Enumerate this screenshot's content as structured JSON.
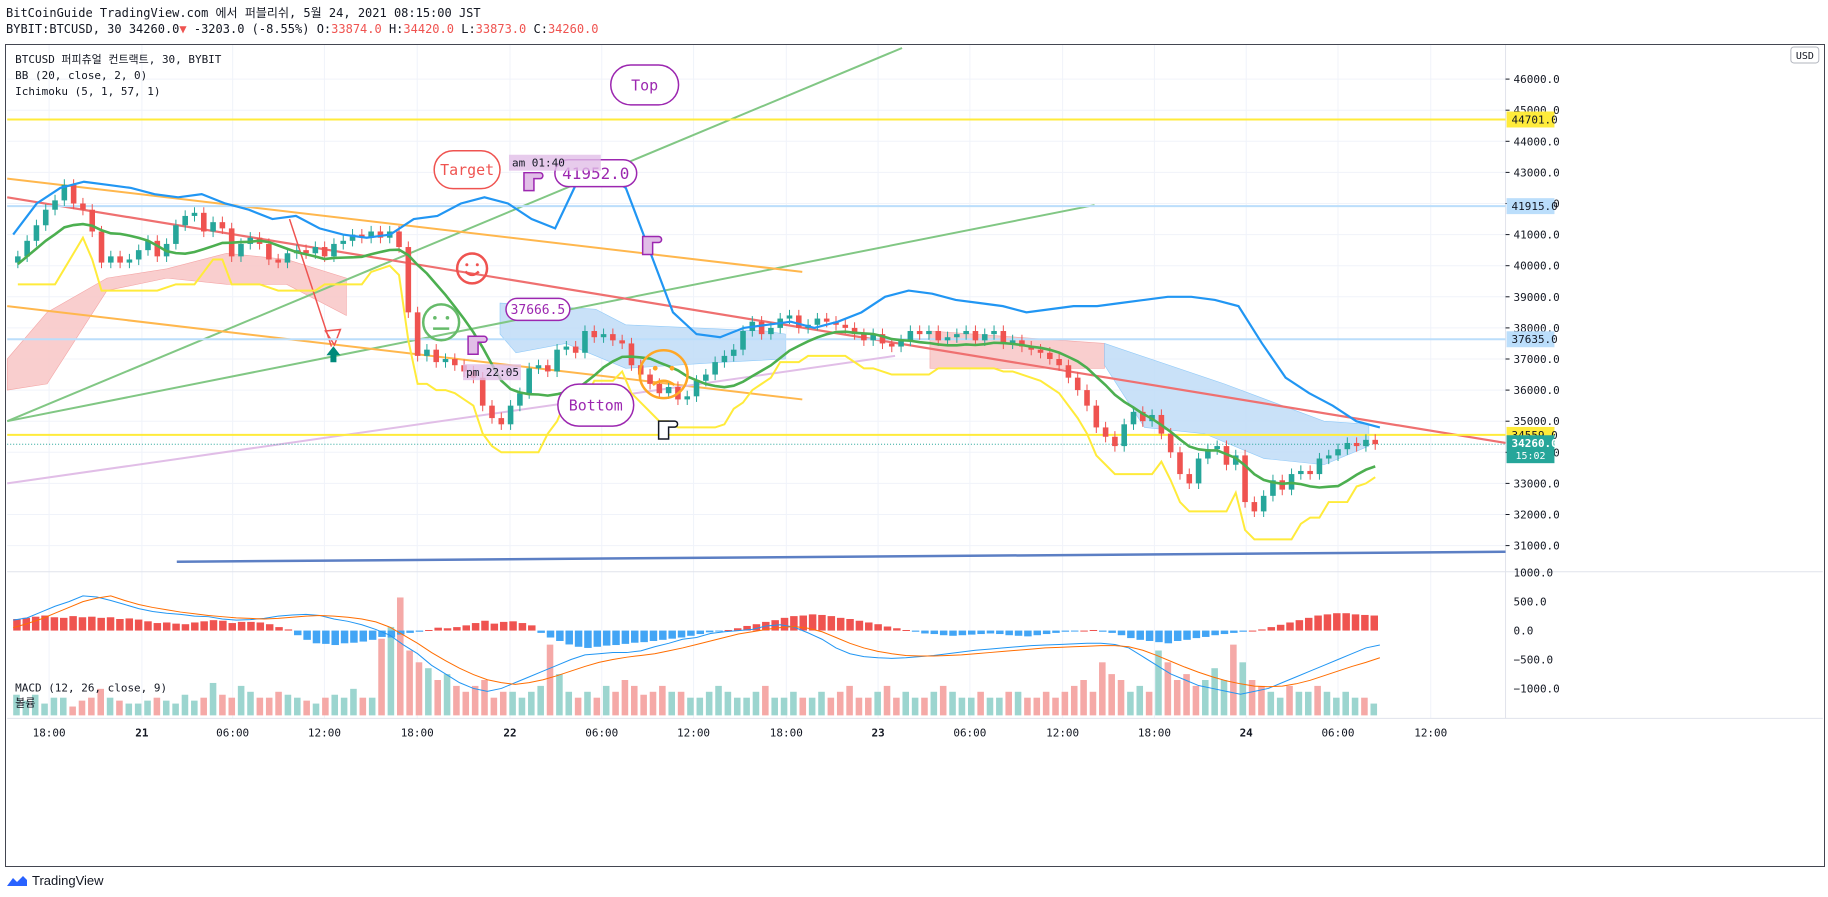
{
  "header": {
    "publisher": "BitCoinGuide TradingView.com 에서 퍼블리쉬, 5월 24, 2021 08:15:00 JST",
    "symbol_line": "BYBIT:BTCUSD, 30 34260.0",
    "change_arrow": "▼",
    "change": "-3203.0 (-8.55%)",
    "o_label": "O:",
    "o_value": "33874.0",
    "h_label": "H:",
    "h_value": "34420.0",
    "l_label": "L:",
    "l_value": "33873.0",
    "c_label": "C:",
    "c_value": "34260.0"
  },
  "legend": {
    "title": "BTCUSD 퍼피츄얼 컨트랙트, 30, BYBIT",
    "bb": "BB (20, close, 2, 0)",
    "ichimoku": "Ichimoku (5, 1, 57, 1)",
    "macd": "MACD (12, 26, close, 9)",
    "volume": "볼륨"
  },
  "currency": "USD",
  "price_tags": {
    "line1": "44701.0",
    "line2": "41915.0",
    "line3": "37635.0",
    "line4": "34559.0",
    "last": "34260.0",
    "countdown": "15:02"
  },
  "annotations": {
    "target": "Target",
    "top": "Top",
    "bottom": "Bottom",
    "time_am": "am 01:40",
    "time_pm": "pm 22:05",
    "price_high": "41952.0",
    "price_low": "37666.5"
  },
  "footer": {
    "brand": "TradingView"
  },
  "colors": {
    "up": "#26a69a",
    "down": "#ef5350",
    "bb_upper": "#2196f3",
    "bb_basis": "#4caf50",
    "tenkan": "#ffeb3b",
    "kumo_bear": "#f8c6c6",
    "kumo_bull": "#bfdcf7",
    "macd_line": "#2196f3",
    "signal_line": "#ff6d00",
    "hline_yellow": "#ffeb3b",
    "hline_blue": "#bbdefb",
    "brand_purple": "#9c27b0"
  },
  "chart_data": {
    "type": "candlestick",
    "symbol": "BYBIT:BTCUSD",
    "interval": "30",
    "price_axis": {
      "ylim": [
        30000,
        47000
      ],
      "ticks": [
        "31000.0",
        "32000.0",
        "33000.0",
        "34000.0",
        "35000.0",
        "36000.0",
        "37000.0",
        "38000.0",
        "39000.0",
        "40000.0",
        "41000.0",
        "42000.0",
        "43000.0",
        "44000.0",
        "45000.0",
        "46000.0"
      ],
      "tick_values": [
        31000,
        32000,
        33000,
        34000,
        35000,
        36000,
        37000,
        38000,
        39000,
        40000,
        41000,
        42000,
        43000,
        44000,
        45000,
        46000
      ]
    },
    "indicator_axis": {
      "ticks": [
        "1000.0",
        "500.0",
        "0.0",
        "−500.0",
        "−1000.0"
      ],
      "tick_values": [
        1000,
        500,
        0,
        -500,
        -1000
      ]
    },
    "time_axis": {
      "ticks": [
        "18:00",
        "21",
        "06:00",
        "12:00",
        "18:00",
        "22",
        "06:00",
        "12:00",
        "18:00",
        "23",
        "06:00",
        "12:00",
        "18:00",
        "24",
        "06:00",
        "12:00"
      ],
      "bold_ticks": [
        "21",
        "22",
        "23",
        "24"
      ]
    },
    "last": {
      "open": 33874.0,
      "high": 34420.0,
      "low": 33873.0,
      "close": 34260.0,
      "change": -3203.0,
      "change_pct": -8.55
    },
    "horizontal_levels": [
      44701.0,
      41915.0,
      37635.0,
      34559.0
    ],
    "close_series": [
      40300,
      40800,
      41300,
      41800,
      42100,
      42600,
      42000,
      41800,
      41100,
      40100,
      40300,
      40100,
      40200,
      40500,
      40800,
      40300,
      40700,
      41300,
      41600,
      41700,
      41100,
      41400,
      41200,
      40300,
      40700,
      40900,
      40700,
      40200,
      40100,
      40400,
      40500,
      40400,
      40600,
      40300,
      40700,
      40800,
      41000,
      40900,
      41100,
      40900,
      41100,
      40600,
      38500,
      37100,
      37300,
      36900,
      37000,
      36800,
      36600,
      36400,
      35500,
      35100,
      34900,
      35500,
      35900,
      36700,
      36800,
      36600,
      37300,
      37400,
      37200,
      37900,
      37700,
      37800,
      37600,
      37500,
      36800,
      36500,
      36200,
      35900,
      36100,
      35700,
      35800,
      36300,
      36500,
      36900,
      37100,
      37300,
      37900,
      38200,
      37800,
      38000,
      38300,
      38400,
      38000,
      38100,
      38300,
      38200,
      38100,
      38000,
      37800,
      37600,
      37800,
      37500,
      37400,
      37600,
      37900,
      37800,
      37900,
      37600,
      37700,
      37800,
      37900,
      37600,
      37800,
      37900,
      37500,
      37600,
      37400,
      37300,
      37200,
      37000,
      36800,
      36400,
      36000,
      35500,
      34800,
      34500,
      34200,
      34900,
      35300,
      35000,
      35200,
      34600,
      34000,
      33300,
      33000,
      33800,
      34100,
      34200,
      33600,
      33900,
      32400,
      32100,
      32600,
      33100,
      32800,
      33300,
      33400,
      33300,
      33800,
      33900,
      34100,
      34300,
      34200,
      34400,
      34260
    ],
    "volume_series": [
      35,
      25,
      35,
      20,
      30,
      30,
      15,
      25,
      30,
      45,
      30,
      25,
      20,
      20,
      25,
      30,
      25,
      20,
      35,
      25,
      30,
      55,
      35,
      30,
      50,
      40,
      30,
      30,
      40,
      35,
      30,
      25,
      20,
      30,
      35,
      30,
      45,
      30,
      30,
      130,
      150,
      200,
      110,
      90,
      80,
      60,
      70,
      50,
      40,
      50,
      60,
      30,
      40,
      40,
      30,
      40,
      50,
      120,
      70,
      40,
      30,
      40,
      30,
      50,
      40,
      60,
      50,
      35,
      40,
      50,
      40,
      40,
      30,
      30,
      40,
      50,
      40,
      30,
      30,
      40,
      50,
      30,
      30,
      40,
      30,
      30,
      40,
      30,
      40,
      50,
      30,
      30,
      40,
      50,
      30,
      40,
      30,
      30,
      40,
      50,
      40,
      30,
      30,
      40,
      30,
      30,
      40,
      40,
      30,
      30,
      40,
      30,
      40,
      50,
      60,
      40,
      90,
      70,
      60,
      40,
      50,
      40,
      110,
      90,
      60,
      70,
      50,
      60,
      80,
      60,
      120,
      90,
      60,
      50,
      40,
      30,
      50,
      40,
      40,
      50,
      40,
      30,
      40,
      30,
      30,
      20
    ],
    "macd_hist_series": [
      200,
      220,
      240,
      260,
      230,
      220,
      250,
      230,
      240,
      220,
      230,
      200,
      210,
      190,
      160,
      130,
      140,
      120,
      110,
      140,
      160,
      180,
      170,
      130,
      150,
      150,
      140,
      110,
      60,
      20,
      -80,
      -160,
      -220,
      -230,
      -250,
      -220,
      -210,
      -190,
      -160,
      -110,
      -120,
      -70,
      -40,
      -20,
      10,
      50,
      40,
      60,
      90,
      130,
      170,
      120,
      150,
      160,
      130,
      90,
      -40,
      -120,
      -180,
      -240,
      -280,
      -300,
      -280,
      -260,
      -250,
      -230,
      -210,
      -200,
      -180,
      -160,
      -140,
      -120,
      -90,
      -60,
      -30,
      -10,
      10,
      40,
      80,
      110,
      150,
      180,
      220,
      250,
      260,
      280,
      270,
      250,
      220,
      200,
      170,
      140,
      110,
      70,
      40,
      10,
      -20,
      -50,
      -60,
      -80,
      -90,
      -80,
      -70,
      -60,
      -50,
      -60,
      -80,
      -90,
      -100,
      -80,
      -60,
      -40,
      -20,
      -10,
      0,
      10,
      -20,
      -40,
      -80,
      -130,
      -160,
      -180,
      -200,
      -220,
      -180,
      -160,
      -130,
      -110,
      -80,
      -60,
      -40,
      -20,
      0,
      20,
      60,
      100,
      140,
      180,
      220,
      260,
      280,
      300,
      300,
      280,
      270,
      260
    ],
    "macd_line_series": [
      180,
      220,
      320,
      420,
      500,
      600,
      580,
      520,
      450,
      380,
      330,
      300,
      280,
      250,
      240,
      200,
      180,
      190,
      210,
      250,
      270,
      280,
      260,
      200,
      160,
      100,
      20,
      -80,
      -250,
      -400,
      -600,
      -750,
      -900,
      -1000,
      -1050,
      -1000,
      -900,
      -800,
      -700,
      -600,
      -500,
      -420,
      -400,
      -380,
      -380,
      -350,
      -280,
      -220,
      -150,
      -120,
      -50,
      -20,
      0,
      20,
      80,
      100,
      60,
      -40,
      -150,
      -300,
      -400,
      -450,
      -470,
      -480,
      -470,
      -450,
      -430,
      -400,
      -370,
      -340,
      -320,
      -300,
      -280,
      -260,
      -250,
      -240,
      -230,
      -220,
      -220,
      -240,
      -300,
      -450,
      -600,
      -750,
      -850,
      -950,
      -1000,
      -1050,
      -1100,
      -1050,
      -1000,
      -900,
      -800,
      -700,
      -600,
      -500,
      -400,
      -300,
      -250
    ],
    "signal_line_series": [
      50,
      120,
      200,
      300,
      400,
      500,
      560,
      600,
      520,
      450,
      400,
      360,
      320,
      290,
      260,
      240,
      220,
      210,
      200,
      210,
      230,
      250,
      260,
      250,
      230,
      200,
      150,
      60,
      -80,
      -220,
      -380,
      -520,
      -650,
      -760,
      -850,
      -900,
      -930,
      -900,
      -850,
      -780,
      -700,
      -620,
      -550,
      -500,
      -460,
      -430,
      -400,
      -350,
      -300,
      -240,
      -180,
      -120,
      -60,
      -20,
      20,
      50,
      70,
      40,
      -20,
      -120,
      -220,
      -300,
      -360,
      -400,
      -430,
      -440,
      -440,
      -430,
      -420,
      -400,
      -380,
      -360,
      -340,
      -320,
      -300,
      -290,
      -280,
      -270,
      -260,
      -260,
      -280,
      -340,
      -430,
      -530,
      -630,
      -720,
      -800,
      -870,
      -920,
      -960,
      -970,
      -960,
      -920,
      -860,
      -780,
      -700,
      -620,
      -550,
      -470
    ],
    "bb_upper_series": [
      41000,
      42000,
      42500,
      42700,
      42600,
      42500,
      42300,
      42200,
      42300,
      42000,
      41800,
      41500,
      41600,
      41200,
      41000,
      40900,
      41000,
      41500,
      41600,
      42000,
      42200,
      42000,
      41500,
      41200,
      42800,
      43000,
      42500,
      40500,
      38500,
      37800,
      37700,
      38000,
      38100,
      38200,
      38000,
      38200,
      38500,
      39000,
      39200,
      39100,
      38900,
      38800,
      38700,
      38500,
      38600,
      38700,
      38700,
      38800,
      38900,
      39000,
      39000,
      38900,
      38700,
      37500,
      36400,
      35900,
      35500,
      35000,
      34800
    ]
  }
}
